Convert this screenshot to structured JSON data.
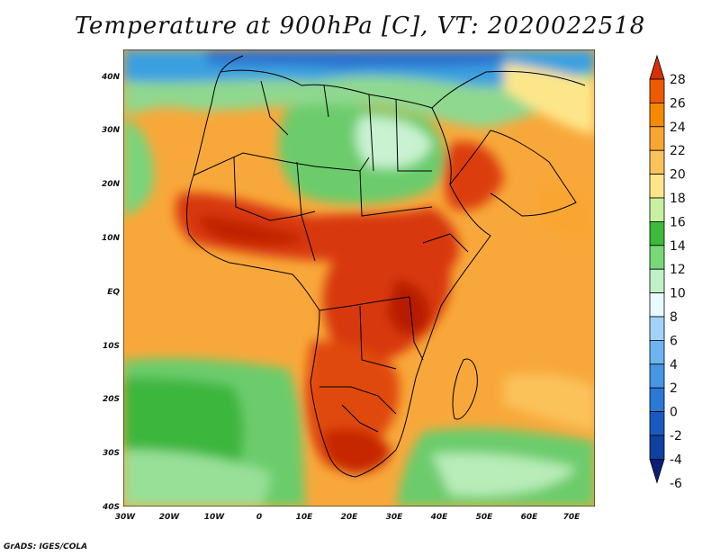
{
  "title": "Temperature at 900hPa [C], VT: 2020022518",
  "credit": "GrADS: IGES/COLA",
  "map": {
    "lat_ticks": [
      "40N",
      "30N",
      "20N",
      "10N",
      "EQ",
      "10S",
      "20S",
      "30S",
      "40S"
    ],
    "lon_ticks": [
      "30W",
      "20W",
      "10W",
      "0",
      "10E",
      "20E",
      "30E",
      "40E",
      "50E",
      "60E",
      "70E"
    ],
    "lat_range": [
      -40,
      45
    ],
    "lon_range": [
      -30,
      75
    ]
  },
  "colorbar": {
    "levels": [
      "28",
      "26",
      "24",
      "22",
      "20",
      "18",
      "16",
      "14",
      "12",
      "10",
      "8",
      "6",
      "4",
      "2",
      "0",
      "-2",
      "-4",
      "-6"
    ],
    "colors": [
      "#d62f00",
      "#ee5a00",
      "#f58a00",
      "#f9a532",
      "#fbc25a",
      "#fde68a",
      "#c8f0a0",
      "#3cba3c",
      "#78d878",
      "#c0f0c8",
      "#e8faff",
      "#a0d2fa",
      "#6eb4f0",
      "#4696e6",
      "#2a78d8",
      "#1a5ac0",
      "#1040a0",
      "#0a1f78"
    ]
  }
}
